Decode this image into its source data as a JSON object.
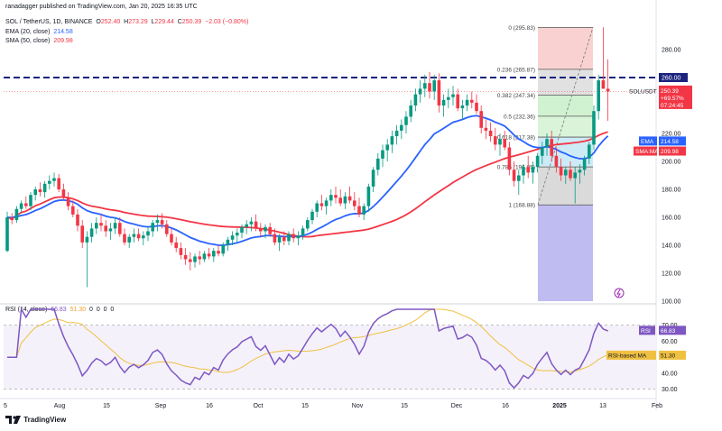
{
  "publisher": "ranadagger published on TradingView.com, Jan 20, 2025 16:35 UTC",
  "symbol_line": {
    "symbol": "SOL / TetherUS, 1D, BINANCE",
    "open_label": "O",
    "open": "252.40",
    "high_label": "H",
    "high": "273.29",
    "low_label": "L",
    "low": "229.44",
    "close_label": "C",
    "close": "250.39",
    "change": "−2.03 (−0.80%)"
  },
  "indicators": [
    {
      "name": "EMA (20, close)",
      "value": "214.58",
      "color": "#2962ff"
    },
    {
      "name": "SMA (50, close)",
      "value": "209.98",
      "color": "#f23645"
    }
  ],
  "rsi_header": {
    "name": "RSI (14, close)",
    "value": "66.83",
    "ma_value": "51.30",
    "zeros": [
      "0",
      "0",
      "0",
      "0"
    ]
  },
  "footer_brand": "TradingView",
  "colors": {
    "up": "#089981",
    "down": "#f23645",
    "ema": "#2962ff",
    "sma": "#f23645",
    "rsi": "#7e57c2",
    "rsi_ma": "#f0c040",
    "resistance": "#1a237e"
  },
  "chart_data": {
    "type": "candlestick",
    "price_axis": {
      "ticks": [
        100,
        120,
        140,
        160,
        180,
        200,
        220,
        240,
        280
      ],
      "labels": [
        "100.00",
        "120.00",
        "140.00",
        "160.00",
        "180.00",
        "200.00",
        "220.00",
        "240.00",
        "280.00"
      ],
      "range": [
        100,
        300
      ]
    },
    "x_axis_labels": [
      "5",
      "Aug",
      "15",
      "Sep",
      "16",
      "Oct",
      "15",
      "Nov",
      "15",
      "Dec",
      "16",
      "2025",
      "13",
      "Feb"
    ],
    "resistance": {
      "value": 260,
      "label": "260.00"
    },
    "fib_levels": [
      {
        "ratio": "0",
        "value": 295.83,
        "label": "0 (295.83)"
      },
      {
        "ratio": "0.236",
        "value": 265.87,
        "label": "0.236 (265.87)"
      },
      {
        "ratio": "0.382",
        "value": 247.34,
        "label": "0.382 (247.34)"
      },
      {
        "ratio": "0.5",
        "value": 232.36,
        "label": "0.5 (232.36)"
      },
      {
        "ratio": "0.618",
        "value": 217.38,
        "label": "0.618 (217.38)"
      },
      {
        "ratio": "0.786",
        "value": 196.05,
        "label": "0.786 (196.05)"
      },
      {
        "ratio": "1",
        "value": 168.88,
        "label": "1 (168.88)"
      }
    ],
    "price_tags": [
      {
        "name": "SOLUSDT",
        "value": "250.39",
        "extra1": "+69.57%",
        "extra2": "07:24:45",
        "color": "#f23645"
      },
      {
        "name": "EMA",
        "value": "214.58",
        "color": "#2962ff"
      },
      {
        "name": "SMA:MA",
        "value": "209.98",
        "color": "#f23645"
      }
    ],
    "candles": [
      [
        136,
        164,
        135,
        160
      ],
      [
        160,
        163,
        155,
        158
      ],
      [
        158,
        168,
        156,
        166
      ],
      [
        166,
        172,
        163,
        170
      ],
      [
        170,
        175,
        166,
        168
      ],
      [
        168,
        178,
        165,
        176
      ],
      [
        176,
        182,
        172,
        180
      ],
      [
        180,
        185,
        175,
        178
      ],
      [
        178,
        186,
        174,
        184
      ],
      [
        184,
        190,
        180,
        186
      ],
      [
        186,
        192,
        182,
        188
      ],
      [
        188,
        191,
        178,
        180
      ],
      [
        180,
        184,
        172,
        174
      ],
      [
        174,
        178,
        165,
        168
      ],
      [
        168,
        172,
        160,
        162
      ],
      [
        162,
        166,
        150,
        154
      ],
      [
        154,
        158,
        138,
        142
      ],
      [
        142,
        150,
        110,
        146
      ],
      [
        146,
        156,
        142,
        152
      ],
      [
        152,
        160,
        148,
        156
      ],
      [
        156,
        162,
        150,
        154
      ],
      [
        154,
        158,
        146,
        150
      ],
      [
        150,
        156,
        144,
        152
      ],
      [
        152,
        160,
        148,
        156
      ],
      [
        156,
        160,
        146,
        148
      ],
      [
        148,
        152,
        140,
        142
      ],
      [
        142,
        148,
        138,
        146
      ],
      [
        146,
        152,
        142,
        148
      ],
      [
        148,
        152,
        143,
        145
      ],
      [
        145,
        150,
        140,
        147
      ],
      [
        147,
        153,
        143,
        150
      ],
      [
        150,
        158,
        146,
        156
      ],
      [
        156,
        162,
        150,
        158
      ],
      [
        158,
        163,
        152,
        155
      ],
      [
        155,
        158,
        146,
        148
      ],
      [
        148,
        152,
        140,
        142
      ],
      [
        142,
        146,
        135,
        138
      ],
      [
        138,
        142,
        130,
        133
      ],
      [
        133,
        138,
        126,
        130
      ],
      [
        130,
        135,
        122,
        128
      ],
      [
        128,
        134,
        124,
        132
      ],
      [
        132,
        136,
        126,
        130
      ],
      [
        130,
        136,
        128,
        134
      ],
      [
        134,
        138,
        130,
        132
      ],
      [
        132,
        138,
        128,
        136
      ],
      [
        136,
        140,
        132,
        134
      ],
      [
        134,
        142,
        132,
        140
      ],
      [
        140,
        146,
        136,
        144
      ],
      [
        144,
        150,
        140,
        147
      ],
      [
        147,
        152,
        142,
        149
      ],
      [
        149,
        155,
        145,
        153
      ],
      [
        153,
        158,
        148,
        155
      ],
      [
        155,
        160,
        150,
        157
      ],
      [
        157,
        162,
        150,
        152
      ],
      [
        152,
        156,
        146,
        150
      ],
      [
        150,
        155,
        145,
        153
      ],
      [
        153,
        156,
        146,
        148
      ],
      [
        148,
        152,
        140,
        142
      ],
      [
        142,
        148,
        136,
        146
      ],
      [
        146,
        150,
        140,
        143
      ],
      [
        143,
        150,
        140,
        148
      ],
      [
        148,
        152,
        142,
        145
      ],
      [
        145,
        150,
        140,
        147
      ],
      [
        147,
        154,
        144,
        152
      ],
      [
        152,
        160,
        150,
        158
      ],
      [
        158,
        166,
        155,
        164
      ],
      [
        164,
        172,
        160,
        170
      ],
      [
        170,
        176,
        165,
        168
      ],
      [
        168,
        174,
        162,
        172
      ],
      [
        172,
        180,
        168,
        176
      ],
      [
        176,
        182,
        170,
        174
      ],
      [
        174,
        180,
        168,
        170
      ],
      [
        170,
        178,
        166,
        175
      ],
      [
        175,
        182,
        170,
        172
      ],
      [
        172,
        178,
        165,
        168
      ],
      [
        168,
        174,
        160,
        162
      ],
      [
        162,
        170,
        158,
        168
      ],
      [
        168,
        184,
        164,
        182
      ],
      [
        182,
        196,
        178,
        194
      ],
      [
        194,
        206,
        190,
        202
      ],
      [
        202,
        212,
        196,
        208
      ],
      [
        208,
        216,
        200,
        212
      ],
      [
        212,
        222,
        206,
        218
      ],
      [
        218,
        226,
        212,
        222
      ],
      [
        222,
        230,
        216,
        226
      ],
      [
        226,
        236,
        220,
        232
      ],
      [
        232,
        244,
        228,
        240
      ],
      [
        240,
        252,
        236,
        248
      ],
      [
        248,
        258,
        242,
        252
      ],
      [
        252,
        262,
        246,
        256
      ],
      [
        256,
        264,
        245,
        250
      ],
      [
        250,
        262,
        244,
        258
      ],
      [
        258,
        263,
        235,
        240
      ],
      [
        240,
        248,
        232,
        244
      ],
      [
        244,
        252,
        238,
        246
      ],
      [
        246,
        254,
        240,
        248
      ],
      [
        248,
        252,
        236,
        238
      ],
      [
        238,
        244,
        230,
        240
      ],
      [
        240,
        248,
        236,
        244
      ],
      [
        244,
        250,
        238,
        242
      ],
      [
        242,
        248,
        234,
        236
      ],
      [
        236,
        240,
        220,
        224
      ],
      [
        224,
        230,
        216,
        222
      ],
      [
        222,
        228,
        214,
        218
      ],
      [
        218,
        224,
        208,
        212
      ],
      [
        212,
        220,
        204,
        216
      ],
      [
        216,
        222,
        208,
        210
      ],
      [
        210,
        214,
        190,
        194
      ],
      [
        194,
        200,
        182,
        186
      ],
      [
        186,
        194,
        176,
        190
      ],
      [
        190,
        198,
        184,
        196
      ],
      [
        196,
        204,
        188,
        192
      ],
      [
        192,
        200,
        184,
        196
      ],
      [
        196,
        206,
        192,
        204
      ],
      [
        204,
        214,
        198,
        210
      ],
      [
        210,
        220,
        204,
        216
      ],
      [
        216,
        222,
        200,
        204
      ],
      [
        204,
        210,
        192,
        196
      ],
      [
        196,
        202,
        186,
        190
      ],
      [
        190,
        196,
        184,
        194
      ],
      [
        194,
        200,
        186,
        188
      ],
      [
        188,
        196,
        170,
        192
      ],
      [
        192,
        198,
        184,
        194
      ],
      [
        194,
        204,
        190,
        202
      ],
      [
        202,
        214,
        198,
        212
      ],
      [
        212,
        240,
        208,
        236
      ],
      [
        236,
        262,
        230,
        258
      ],
      [
        258,
        296,
        252,
        252
      ],
      [
        252,
        273,
        229,
        250
      ]
    ],
    "rsi_axis": {
      "ticks": [
        30,
        40,
        60,
        70
      ],
      "labels": [
        "30.00",
        "40.00",
        "60.00",
        "70.00"
      ],
      "range": [
        27,
        80
      ]
    },
    "rsi_tags": [
      {
        "name": "RSI",
        "value": "66.83",
        "color": "#7e57c2"
      },
      {
        "name": "RSI-based MA",
        "value": "51.30",
        "color": "#f0c040"
      }
    ]
  }
}
